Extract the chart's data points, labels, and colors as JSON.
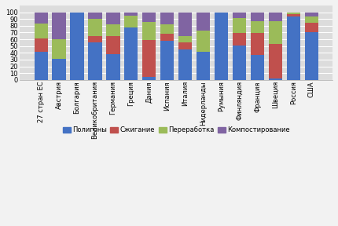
{
  "categories": [
    "27 стран ЕС",
    "Австрия",
    "Болгария",
    "Великобритания",
    "Германия",
    "Греция",
    "Дания",
    "Испания",
    "Италия",
    "Нидерланды",
    "Румыния",
    "Финляндия",
    "Франция",
    "Швеция",
    "Россия",
    "США"
  ],
  "polygons": [
    41,
    31,
    100,
    56,
    38,
    78,
    5,
    58,
    45,
    41,
    99,
    51,
    37,
    2,
    94,
    70
  ],
  "burning": [
    20,
    0,
    0,
    9,
    27,
    0,
    54,
    10,
    11,
    1,
    0,
    18,
    32,
    51,
    3,
    15
  ],
  "recycling": [
    22,
    29,
    0,
    25,
    17,
    17,
    27,
    14,
    9,
    31,
    0,
    22,
    18,
    34,
    2,
    9
  ],
  "composting": [
    17,
    40,
    0,
    10,
    18,
    5,
    14,
    18,
    35,
    27,
    1,
    9,
    13,
    13,
    1,
    6
  ],
  "colors": {
    "polygons": "#4472C4",
    "burning": "#C0504D",
    "recycling": "#9BBB59",
    "composting": "#8064A2"
  },
  "legend_labels": [
    "Полигоны",
    "Сжигание",
    "Переработка",
    "Компостирование"
  ],
  "ylim": [
    0,
    110
  ],
  "yticks": [
    0,
    10,
    20,
    30,
    40,
    50,
    60,
    70,
    80,
    90,
    100
  ],
  "bg_color": "#DCDCDC",
  "fig_color": "#F2F2F2",
  "bar_width": 0.75,
  "grid_color": "#FFFFFF",
  "tick_fontsize": 6.0,
  "xlabel_fontsize": 6.0
}
